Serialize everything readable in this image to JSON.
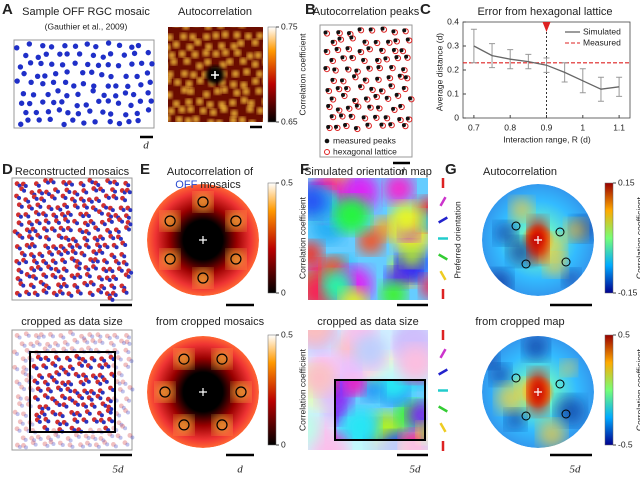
{
  "panels": {
    "A": {
      "letter": "A",
      "title": "Sample OFF RGC mosaic",
      "subtitle": "(Gauthier et al., 2009)",
      "scale": "d"
    },
    "A2": {
      "title": "Autocorrelation",
      "colorbar": {
        "label": "Correlation coefficient",
        "ticks": [
          0.65,
          0.75
        ]
      }
    },
    "B": {
      "letter": "B",
      "title": "Autocorrelation peaks",
      "legend": [
        "measured peaks",
        "hexagonal lattice"
      ],
      "scale": "d"
    },
    "C": {
      "letter": "C"
    },
    "D": {
      "letter": "D",
      "title_top": "Reconstructed mosaics",
      "title_bottom": "cropped as data size",
      "scale": "5d"
    },
    "E": {
      "letter": "E",
      "title_top": "Autocorrelation of",
      "title_top_highlight": "OFF",
      "title_top_rest": "mosaics",
      "title_bottom": "from cropped mosaics",
      "colorbar_top": {
        "label": "Correlation coefficient",
        "ticks": [
          0,
          0.5
        ]
      },
      "colorbar_bottom": {
        "label": "Correlation coefficient",
        "ticks": [
          0,
          0.5
        ]
      },
      "scale": "d"
    },
    "F": {
      "letter": "F",
      "title_top": "Simulated orientation map",
      "title_bottom": "cropped as data size",
      "legend": "Preferred orientation",
      "scale": "5d"
    },
    "G": {
      "letter": "G",
      "title_top": "Autocorrelation",
      "title_bottom": "from cropped map",
      "colorbar_top": {
        "label": "Correlation coefficient",
        "ticks": [
          -0.15,
          0.15
        ]
      },
      "colorbar_bottom": {
        "label": "Correlation coefficient",
        "ticks": [
          -0.5,
          0.5
        ]
      },
      "scale": "5d"
    }
  },
  "chart_data": {
    "type": "line",
    "title": "Error from hexagonal lattice",
    "x_label": "Interaction range, R (d)",
    "y_label": "Average distance (d)",
    "x": [
      0.7,
      0.75,
      0.8,
      0.85,
      0.9,
      0.95,
      1.0,
      1.05,
      1.1
    ],
    "series": [
      {
        "name": "Simulated",
        "color": "#666666",
        "values": [
          0.3,
          0.26,
          0.245,
          0.235,
          0.22,
          0.19,
          0.155,
          0.12,
          0.13
        ],
        "errors": [
          0.07,
          0.05,
          0.04,
          0.03,
          0.03,
          0.04,
          0.05,
          0.05,
          0.04
        ]
      }
    ],
    "reference_line": {
      "name": "Measured",
      "value": 0.23,
      "color": "#dd2222"
    },
    "marker_x": 0.9,
    "xlim": [
      0.67,
      1.13
    ],
    "xticks": [
      0.7,
      0.8,
      0.9,
      {
        "value": 1.0,
        "label": "1"
      },
      1.1
    ],
    "ylim": [
      0,
      0.4
    ],
    "yticks": [
      0,
      0.1,
      0.2,
      0.3,
      0.4
    ]
  }
}
